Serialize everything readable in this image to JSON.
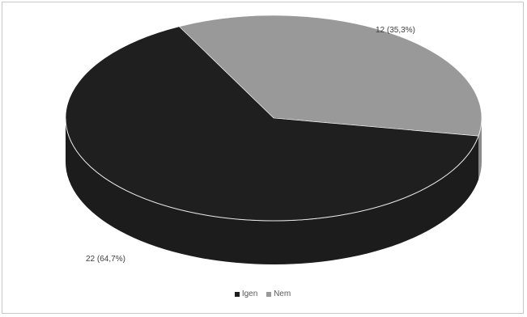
{
  "chart_data": {
    "type": "pie",
    "three_d": true,
    "categories": [
      "Igen",
      "Nem"
    ],
    "values": [
      22,
      12
    ],
    "percentages": [
      64.7,
      35.3
    ],
    "data_labels": [
      "22 (64,7%)",
      "12 (35,3%)"
    ],
    "colors": [
      "#1f1f1f",
      "#999999"
    ],
    "legend_position": "bottom",
    "title": ""
  }
}
